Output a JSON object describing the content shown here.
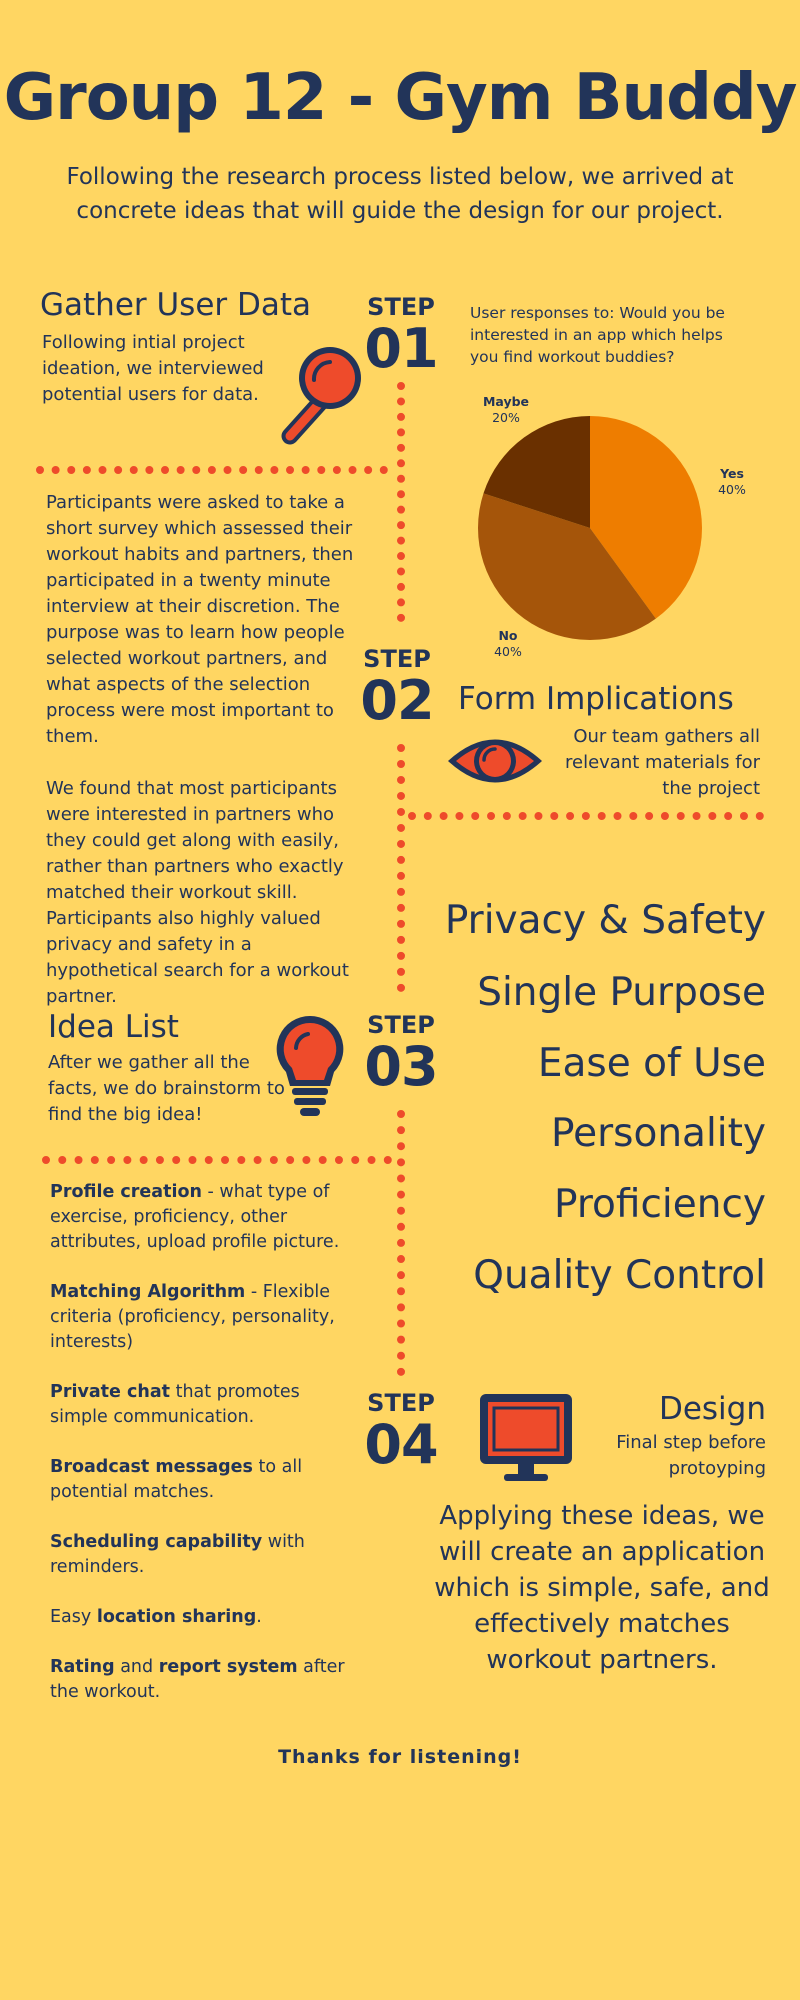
{
  "header": {
    "title": "Group 12 - Gym Buddy",
    "subtitle": "Following the research process listed below, we arrived at concrete ideas that will guide the design for our project."
  },
  "steps": {
    "step1": {
      "label": "STEP",
      "number": "01",
      "heading": "Gather User Data",
      "text": "Following intial project ideation, we interviewed potential users for data."
    },
    "step2": {
      "label": "STEP",
      "number": "02",
      "heading": "Form Implications",
      "text": "Our team gathers all relevant materials for the project"
    },
    "step3": {
      "label": "STEP",
      "number": "03",
      "heading": "Idea List",
      "text": "After we gather all the facts, we do brainstorm to find the big idea!"
    },
    "step4": {
      "label": "STEP",
      "number": "04",
      "heading": "Design",
      "text": "Final step before protoyping"
    }
  },
  "research": {
    "para1": "Participants were asked to take a short survey which assessed their workout habits and partners, then participated in a twenty minute interview at their discretion. The purpose was to learn how people selected workout partners, and what aspects of the selection process were most important to them.",
    "para2": "We found that most participants were interested in partners who they could get along with easily, rather than partners who exactly matched their workout skill. Participants also highly  valued privacy and safety in a hypothetical search for a workout partner."
  },
  "implications": [
    "Privacy & Safety",
    "Single Purpose",
    "Ease of Use",
    "Personality",
    "Proficiency",
    "Quality Control"
  ],
  "features": [
    {
      "bold": "Profile creation",
      "rest": " - what type of exercise, proficiency, other attributes, upload profile picture."
    },
    {
      "bold": "Matching Algorithm",
      "rest": " - Flexible criteria (proficiency, personality, interests)"
    },
    {
      "bold": "Private chat",
      "rest": " that promotes simple communication."
    },
    {
      "bold": "Broadcast messages",
      "rest": " to all potential matches."
    },
    {
      "bold": "Scheduling capability",
      "rest": " with reminders."
    }
  ],
  "feature_location": {
    "pre": "Easy ",
    "bold": "location sharing",
    "post": "."
  },
  "feature_rating": {
    "bold1": "Rating",
    "mid": " and ",
    "bold2": "report system",
    "post": " after the workout."
  },
  "conclusion": "Applying these ideas, we will create an application which is simple, safe, and effectively matches workout partners.",
  "footer": "Thanks for listening!",
  "colors": {
    "background": "#FFD662",
    "navy": "#223459",
    "accent_red": "#EE4B2B"
  },
  "icons": [
    "magnifier-icon",
    "eye-icon",
    "lightbulb-icon",
    "monitor-icon"
  ],
  "chart_data": {
    "type": "pie",
    "title": "User responses to: Would you be interested in an app which helps you find workout buddies?",
    "slices": [
      {
        "label": "Yes",
        "value": 40,
        "display": "40%",
        "color": "#EE7D00"
      },
      {
        "label": "No",
        "value": 40,
        "display": "40%",
        "color": "#A5550A"
      },
      {
        "label": "Maybe",
        "value": 20,
        "display": "20%",
        "color": "#6A3000"
      }
    ]
  }
}
